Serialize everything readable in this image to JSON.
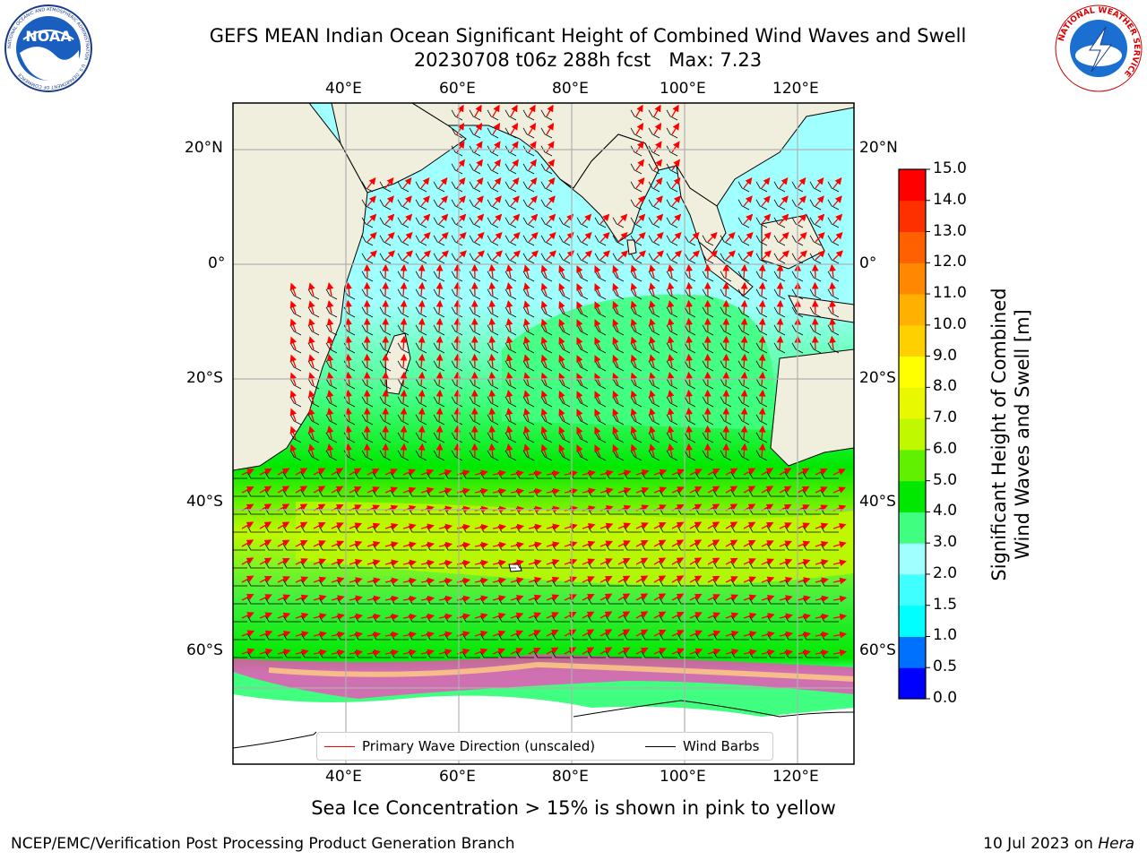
{
  "header": {
    "title_line1": "GEFS MEAN Indian Ocean Significant Height of Combined Wind Waves and Swell",
    "title_line2": "20230708 t06z 288h fcst   Max: 7.23"
  },
  "logos": {
    "noaa_text": "NOAA",
    "noaa_ring_text": "NATIONAL OCEANIC AND ATMOSPHERIC ADMINISTRATION · U.S. DEPARTMENT OF COMMERCE",
    "nws_ring_text": "NATIONAL WEATHER SERVICE"
  },
  "axes": {
    "top_lon_labels": [
      "40°E",
      "60°E",
      "80°E",
      "100°E",
      "120°E"
    ],
    "bottom_lon_labels": [
      "40°E",
      "60°E",
      "80°E",
      "100°E",
      "120°E"
    ],
    "lon_values": [
      40,
      60,
      80,
      100,
      120
    ],
    "left_lat_labels": [
      "20°N",
      "0°",
      "20°S",
      "40°S",
      "60°S"
    ],
    "right_lat_labels": [
      "20°N",
      "0°",
      "20°S",
      "40°S",
      "60°S"
    ],
    "lat_values": [
      20,
      0,
      -20,
      -40,
      -60
    ]
  },
  "colorbar": {
    "title_line1": "Significant Height of Combined",
    "title_line2": "Wind Waves and Swell [m]",
    "tick_labels": [
      "0.0",
      "0.5",
      "1.0",
      "1.5",
      "2.0",
      "3.0",
      "4.0",
      "5.0",
      "6.0",
      "7.0",
      "8.0",
      "9.0",
      "10.0",
      "11.0",
      "12.0",
      "13.0",
      "14.0",
      "15.0"
    ],
    "colors": [
      "#0000ff",
      "#0070ff",
      "#00ffff",
      "#40ffff",
      "#a0ffff",
      "#40ff80",
      "#00e800",
      "#60f000",
      "#c0f800",
      "#e8f800",
      "#ffff00",
      "#ffd000",
      "#ffb000",
      "#ff8800",
      "#ff6000",
      "#ff3000",
      "#ff0000"
    ]
  },
  "legend": {
    "wave_direction": "Primary Wave Direction (unscaled)",
    "wind_barbs": "Wind Barbs",
    "wave_color": "#ff0000",
    "barb_color": "#000000"
  },
  "footnote": "Sea Ice Concentration > 15% is shown in pink to yellow",
  "credits": {
    "left": "NCEP/EMC/Verification Post Processing Product Generation Branch",
    "right_date": "10 Jul 2023 on ",
    "right_host": "Hera"
  },
  "colors": {
    "land": "#f0eedc",
    "ocean_grid": "#b0b0b0",
    "sea_ice": "#ff40c0"
  }
}
